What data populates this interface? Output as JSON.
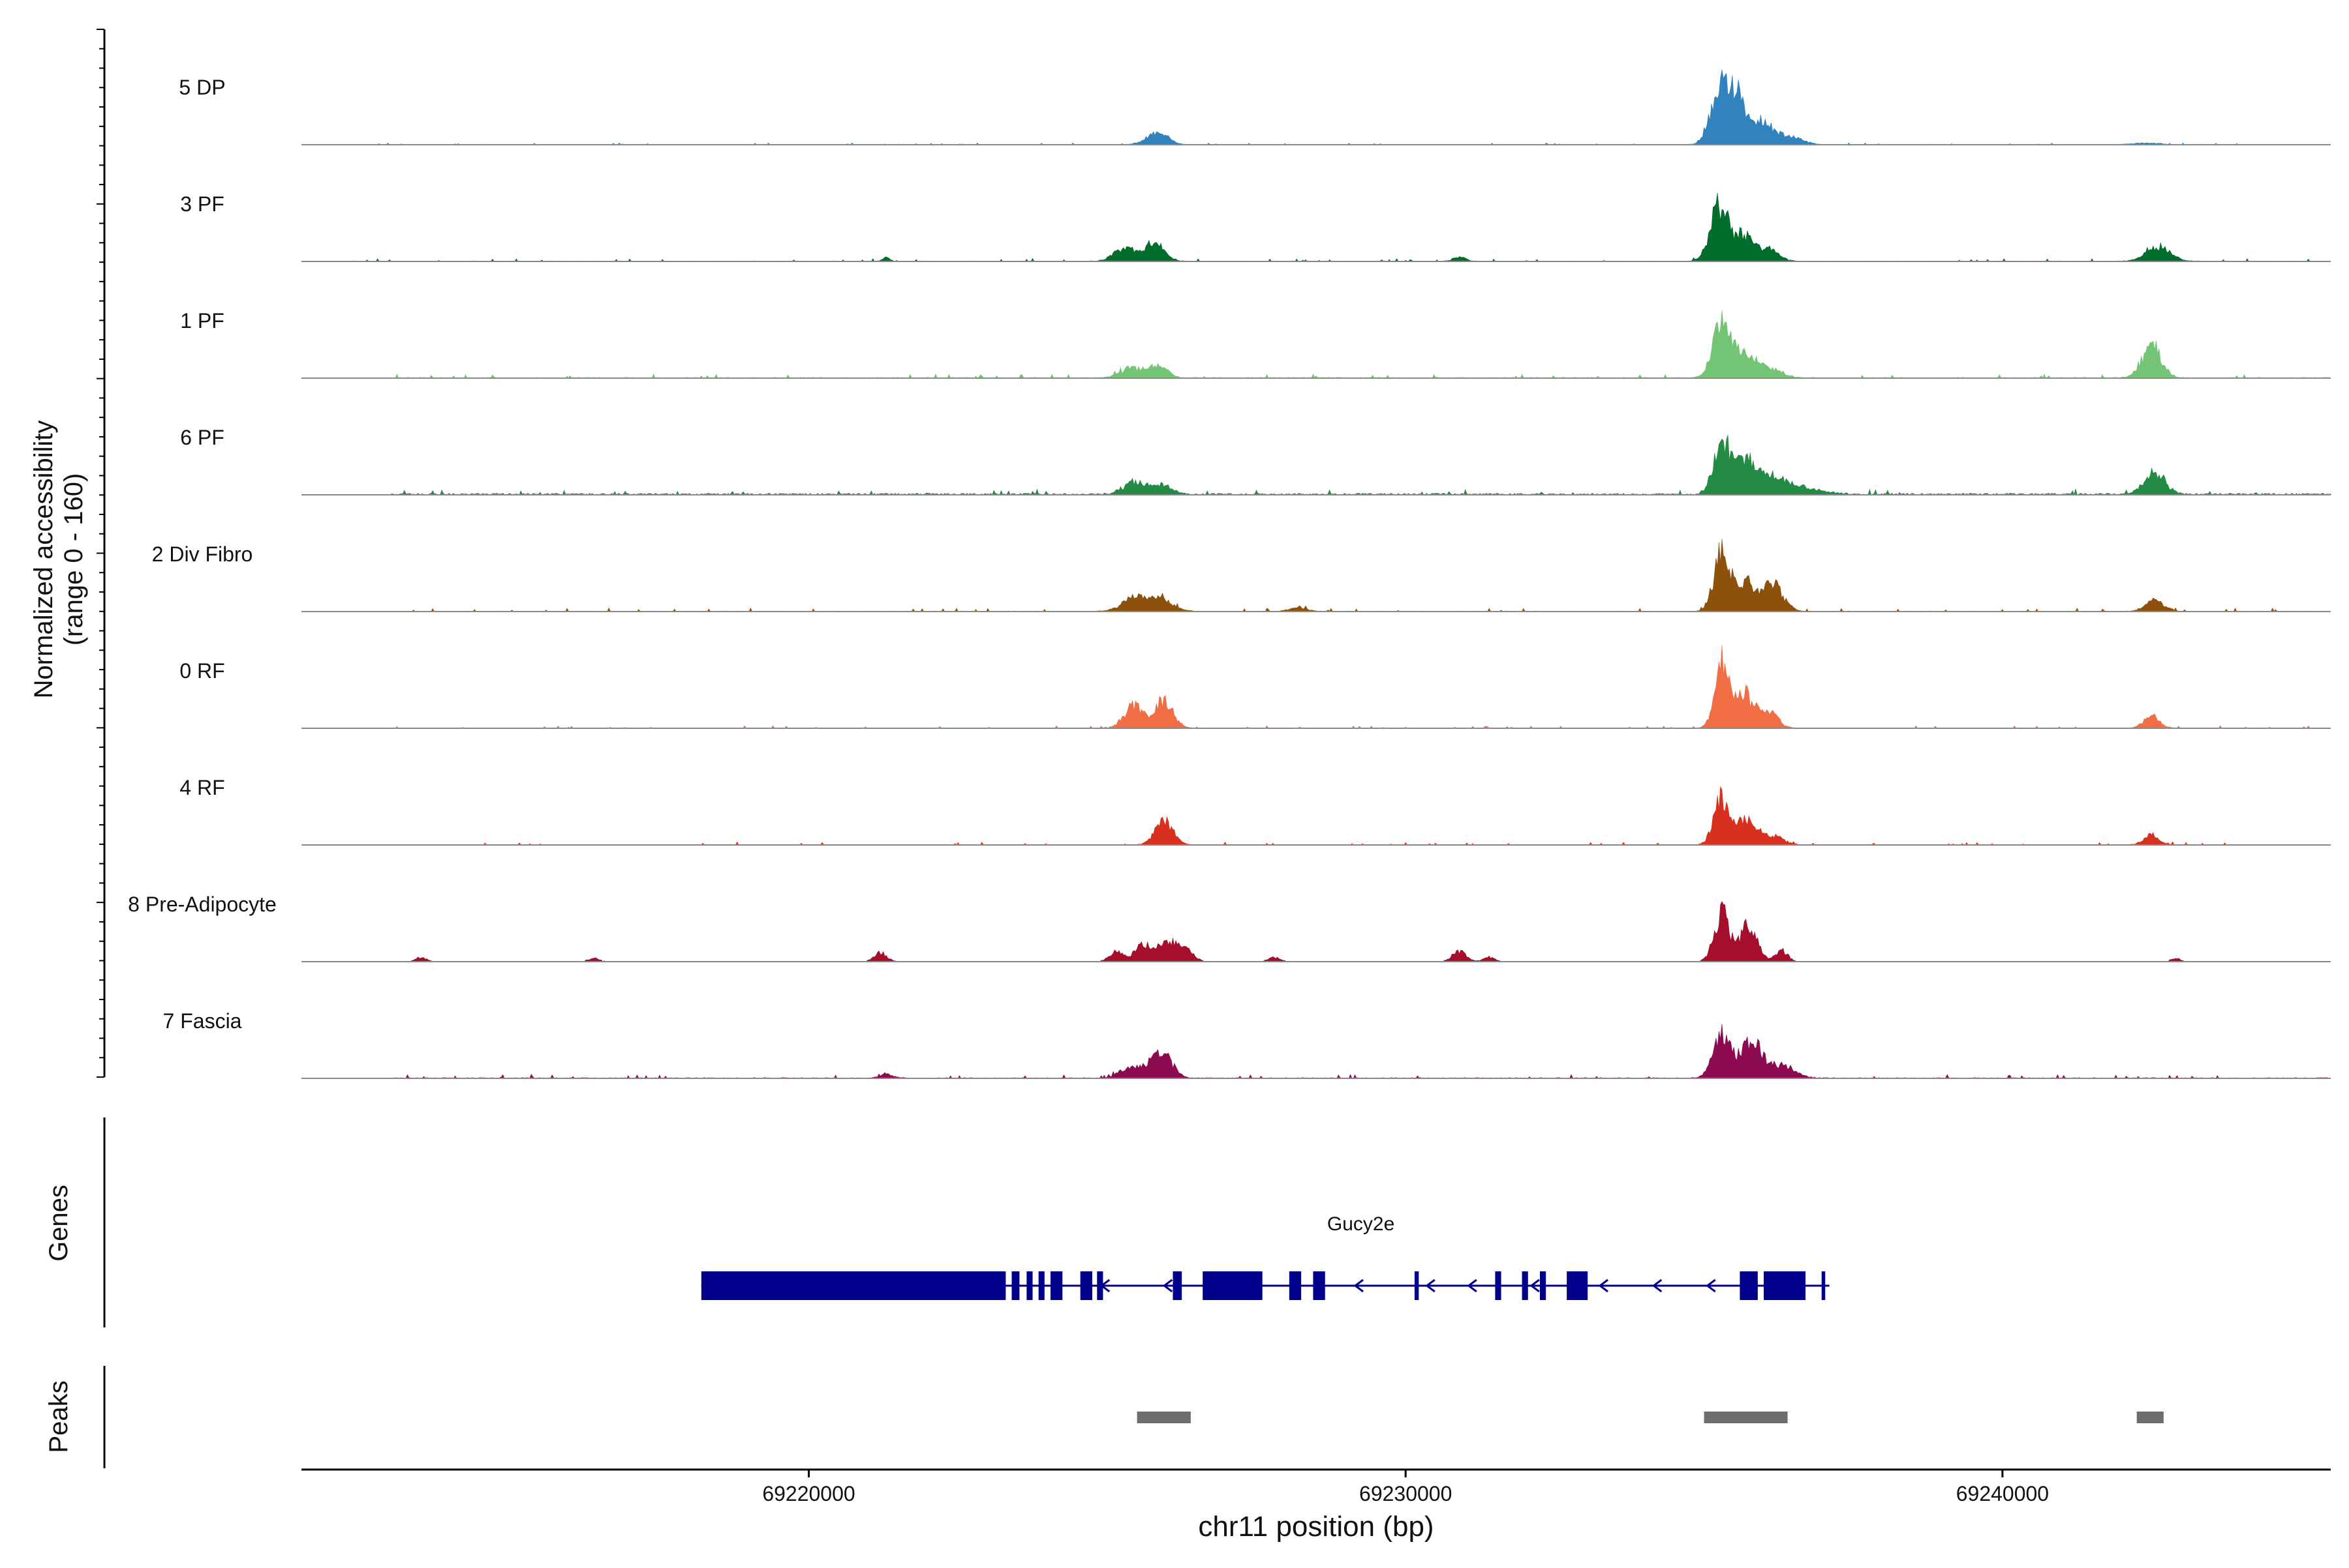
{
  "chart_data": {
    "type": "area",
    "chromosome": "chr11",
    "xlim": [
      69211500,
      69245500
    ],
    "ylim": [
      0,
      160
    ],
    "y_axis_title_line1": "Normalized accessibility",
    "y_axis_title_line2": "(range 0 - 160)",
    "x_axis_title": "chr11 position (bp)",
    "x_ticks": [
      {
        "value": 69220000,
        "label": "69220000"
      },
      {
        "value": 69230000,
        "label": "69230000"
      },
      {
        "value": 69240000,
        "label": "69240000"
      }
    ],
    "tracks": [
      {
        "label": "5 DP",
        "color": "#3182bd",
        "baseline": 0.6,
        "noise": 1.0,
        "range": [
          69211500,
          69244300
        ],
        "peaks": [
          [
            69225800,
            180,
            16
          ],
          [
            69225950,
            120,
            8
          ],
          [
            69235250,
            150,
            100
          ],
          [
            69235550,
            140,
            80
          ],
          [
            69235950,
            180,
            40
          ],
          [
            69236400,
            220,
            15
          ],
          [
            69242400,
            250,
            3
          ]
        ]
      },
      {
        "label": "3 PF",
        "color": "#006d2c",
        "baseline": 1.0,
        "noise": 1.5,
        "range": [
          69211500,
          69245500
        ],
        "peaks": [
          [
            69225300,
            180,
            24
          ],
          [
            69225800,
            160,
            32
          ],
          [
            69235250,
            150,
            98
          ],
          [
            69235650,
            150,
            45
          ],
          [
            69236050,
            180,
            22
          ],
          [
            69230900,
            100,
            8
          ],
          [
            69221300,
            60,
            6
          ],
          [
            69242600,
            200,
            28
          ]
        ]
      },
      {
        "label": "1 PF",
        "color": "#74c476",
        "baseline": 1.5,
        "noise": 2.2,
        "range": [
          69213000,
          69245500
        ],
        "peaks": [
          [
            69225400,
            180,
            18
          ],
          [
            69225850,
            160,
            22
          ],
          [
            69235300,
            150,
            100
          ],
          [
            69235700,
            170,
            40
          ],
          [
            69236100,
            200,
            18
          ],
          [
            69242500,
            160,
            58
          ]
        ]
      },
      {
        "label": "6 PF",
        "color": "#238b45",
        "baseline": 3.0,
        "noise": 3.0,
        "range": [
          69213000,
          69245500
        ],
        "peaks": [
          [
            69225450,
            180,
            22
          ],
          [
            69225900,
            170,
            16
          ],
          [
            69235300,
            140,
            95
          ],
          [
            69235700,
            180,
            60
          ],
          [
            69236200,
            260,
            30
          ],
          [
            69242550,
            170,
            38
          ],
          [
            69236800,
            300,
            8
          ]
        ]
      },
      {
        "label": "2 Div Fibro",
        "color": "#8c510a",
        "baseline": 1.0,
        "noise": 2.0,
        "range": [
          69213000,
          69245500
        ],
        "peaks": [
          [
            69225450,
            200,
            25
          ],
          [
            69225900,
            200,
            22
          ],
          [
            69235300,
            130,
            110
          ],
          [
            69235700,
            160,
            55
          ],
          [
            69236150,
            170,
            48
          ],
          [
            69242550,
            150,
            20
          ],
          [
            69228200,
            150,
            6
          ]
        ]
      },
      {
        "label": "0 RF",
        "color": "#f16d43",
        "baseline": 0.8,
        "noise": 1.4,
        "range": [
          69213000,
          69245500
        ],
        "peaks": [
          [
            69225450,
            160,
            40
          ],
          [
            69225950,
            150,
            52
          ],
          [
            69235300,
            120,
            120
          ],
          [
            69235650,
            140,
            65
          ],
          [
            69236050,
            160,
            32
          ],
          [
            69242500,
            130,
            22
          ]
        ]
      },
      {
        "label": "4 RF",
        "color": "#d7301f",
        "baseline": 0.8,
        "noise": 1.6,
        "range": [
          69213000,
          69245500
        ],
        "peaks": [
          [
            69225950,
            150,
            42
          ],
          [
            69235300,
            130,
            85
          ],
          [
            69235700,
            150,
            45
          ],
          [
            69236100,
            200,
            18
          ],
          [
            69242500,
            130,
            18
          ]
        ]
      },
      {
        "label": "8 Pre-Adipocyte",
        "color": "#a50f2c",
        "baseline": 0.0,
        "noise": 0.0,
        "range": [
          69213000,
          69245500
        ],
        "peaks": [
          [
            69213500,
            90,
            8
          ],
          [
            69216400,
            100,
            6
          ],
          [
            69221200,
            110,
            16
          ],
          [
            69225150,
            120,
            18
          ],
          [
            69225600,
            140,
            30
          ],
          [
            69226000,
            150,
            35
          ],
          [
            69226300,
            140,
            20
          ],
          [
            69227800,
            100,
            8
          ],
          [
            69230900,
            120,
            18
          ],
          [
            69231400,
            100,
            8
          ],
          [
            69235300,
            130,
            85
          ],
          [
            69235750,
            140,
            65
          ],
          [
            69236300,
            100,
            22
          ],
          [
            69242900,
            80,
            6
          ]
        ]
      },
      {
        "label": "7 Fascia",
        "color": "#8b0a50",
        "baseline": 1.5,
        "noise": 2.2,
        "range": [
          69213000,
          69245500
        ],
        "peaks": [
          [
            69225400,
            180,
            20
          ],
          [
            69225900,
            170,
            48
          ],
          [
            69235300,
            150,
            80
          ],
          [
            69235800,
            170,
            65
          ],
          [
            69236300,
            220,
            22
          ],
          [
            69221300,
            120,
            6
          ]
        ]
      }
    ]
  },
  "genes": {
    "label": "Genes",
    "gene_name": "Gucy2e",
    "color": "#00008b",
    "start": 69218200,
    "end": 69237100,
    "exons": [
      [
        69218200,
        69223300
      ],
      [
        69223400,
        69223530
      ],
      [
        69223650,
        69223750
      ],
      [
        69223850,
        69223950
      ],
      [
        69224050,
        69224250
      ],
      [
        69224550,
        69224750
      ],
      [
        69224830,
        69224930
      ],
      [
        69226100,
        69226250
      ],
      [
        69226600,
        69227600
      ],
      [
        69228050,
        69228250
      ],
      [
        69228450,
        69228650
      ],
      [
        69230150,
        69230220
      ],
      [
        69231500,
        69231600
      ],
      [
        69231950,
        69232050
      ],
      [
        69232250,
        69232350
      ],
      [
        69232700,
        69233050
      ],
      [
        69235600,
        69235900
      ],
      [
        69236000,
        69236700
      ],
      [
        69236970,
        69237030
      ]
    ],
    "arrows": [
      69224950,
      69226000,
      69229200,
      69230400,
      69231100,
      69232150,
      69233300,
      69234200,
      69235100
    ]
  },
  "peaks": {
    "label": "Peaks",
    "color": "#6e6e6e",
    "regions": [
      [
        69225500,
        69226400
      ],
      [
        69235000,
        69236400
      ],
      [
        69242250,
        69242700
      ]
    ]
  }
}
